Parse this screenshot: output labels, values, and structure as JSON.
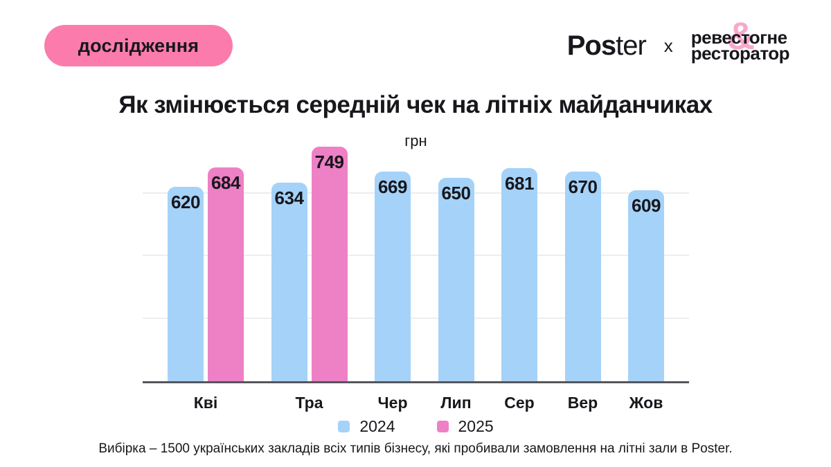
{
  "header": {
    "badge_label": "дослідження",
    "logos": {
      "poster_bold": "Pos",
      "poster_light": "ter",
      "separator": "x",
      "partner_line1_a": "реве",
      "partner_amp": "&",
      "partner_line1_b": "стогне",
      "partner_line2": "ресторатор"
    }
  },
  "title": "Як змінюється середній чек на літніх майданчиках",
  "chart_data": {
    "type": "bar",
    "title": "Як змінюється середній чек на літніх майданчиках",
    "xlabel": "",
    "ylabel": "грн",
    "categories": [
      "Кві",
      "Тра",
      "Чер",
      "Лип",
      "Сер",
      "Вер",
      "Жов"
    ],
    "series": [
      {
        "name": "2024",
        "color": "#a5d2f8",
        "values": [
          620,
          634,
          669,
          650,
          681,
          670,
          609
        ]
      },
      {
        "name": "2025",
        "color": "#ee80c5",
        "values": [
          684,
          749,
          null,
          null,
          null,
          null,
          null
        ]
      }
    ],
    "ylim": [
      0,
      800
    ],
    "gridlines": [
      200,
      400,
      600
    ],
    "grid": true,
    "value_labels": true,
    "legend_position": "bottom"
  },
  "footer": {
    "note": "Вибірка  – 1500 українських закладів всіх типів бізнесу, які пробивали замовлення на літні зали в Poster."
  },
  "colors": {
    "background": "#ffffff",
    "text": "#17171c",
    "badge_pink": "#fb7cac",
    "bar_blue": "#a5d2f8",
    "bar_pink": "#ee80c5",
    "ampersand_pink": "#f8a9cb",
    "axis_line": "#55555b",
    "gridline": "#ededf0"
  }
}
